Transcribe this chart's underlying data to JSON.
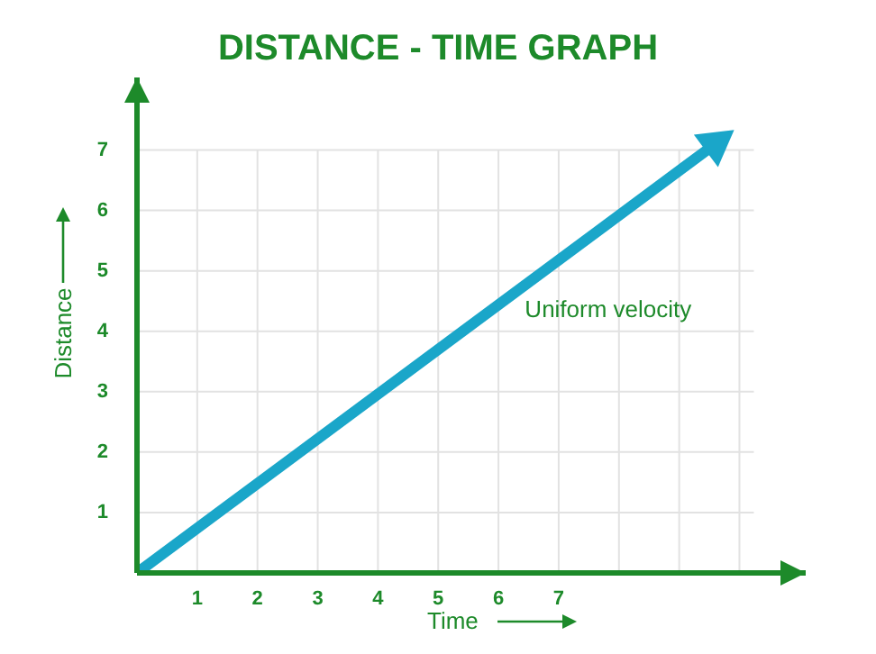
{
  "chart_data": {
    "type": "line",
    "title": "DISTANCE - TIME GRAPH",
    "xlabel": "Time",
    "ylabel": "Distance",
    "x": [
      0,
      9.6
    ],
    "series": [
      {
        "color": "#1aa6c9",
        "values": [
          0,
          7.1
        ]
      }
    ],
    "xlim": [
      0,
      11.1
    ],
    "ylim": [
      0,
      8.2
    ],
    "xticks": [
      {
        "value": 0,
        "label": null
      },
      1,
      2,
      3,
      4,
      5,
      6,
      7,
      {
        "value": 8,
        "label": null
      },
      {
        "value": 9,
        "label": null
      },
      {
        "value": 10,
        "label": null
      }
    ],
    "yticks": [
      {
        "value": 0,
        "label": null
      },
      1,
      2,
      3,
      4,
      5,
      6,
      7
    ],
    "grid": true,
    "marker": "triangle",
    "line_style": "solid",
    "annotations": [
      "Uniform velocity"
    ]
  }
}
